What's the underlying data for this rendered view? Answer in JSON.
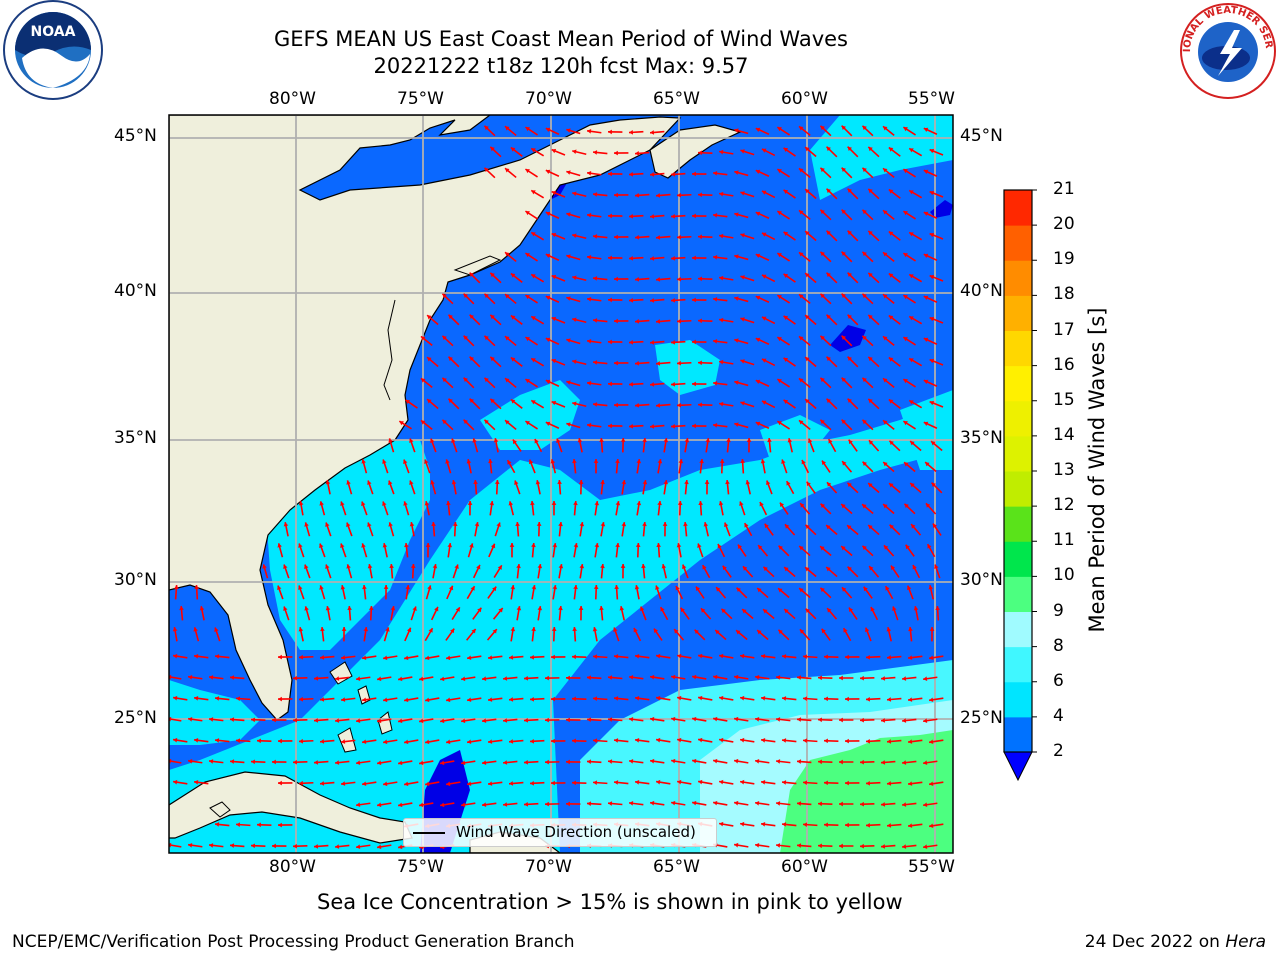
{
  "header": {
    "title": "GEFS MEAN US East Coast Mean Period of Wind Waves",
    "subtitle": "20221222 t18z 120h fcst   Max: 9.57"
  },
  "logos": {
    "left": "NOAA",
    "right": "NATIONAL WEATHER SERVICE"
  },
  "map": {
    "lon_labels": [
      "80°W",
      "75°W",
      "70°W",
      "65°W",
      "60°W",
      "55°W"
    ],
    "lat_labels": [
      "45°N",
      "40°N",
      "35°N",
      "30°N",
      "25°N"
    ],
    "lon_range": [
      -85,
      -53
    ],
    "lat_range": [
      20.5,
      46
    ],
    "land_color": "#efefdc",
    "arrow_color": "#ff0000",
    "legend_label": "Wind Wave Direction (unscaled)"
  },
  "colorbar": {
    "label": "Mean Period of Wind Waves [s]",
    "ticks": [
      "2",
      "4",
      "6",
      "8",
      "9",
      "10",
      "11",
      "12",
      "13",
      "14",
      "15",
      "16",
      "17",
      "18",
      "19",
      "20",
      "21"
    ],
    "colors": [
      "#0072ff",
      "#00e5ff",
      "#40f7ff",
      "#a0fbff",
      "#4cff80",
      "#00e64c",
      "#5ae31a",
      "#c0ed00",
      "#ddf200",
      "#eef000",
      "#fff000",
      "#ffd700",
      "#ffb000",
      "#ff8c00",
      "#ff6000",
      "#ff2800"
    ],
    "under_color": "#0000ff"
  },
  "footer": {
    "sea_ice_note": "Sea Ice Concentration > 15% is shown in pink to yellow",
    "credit": "NCEP/EMC/Verification Post Processing Product Generation Branch",
    "date_prefix": "24 Dec 2022 on ",
    "machine": "Hera"
  }
}
